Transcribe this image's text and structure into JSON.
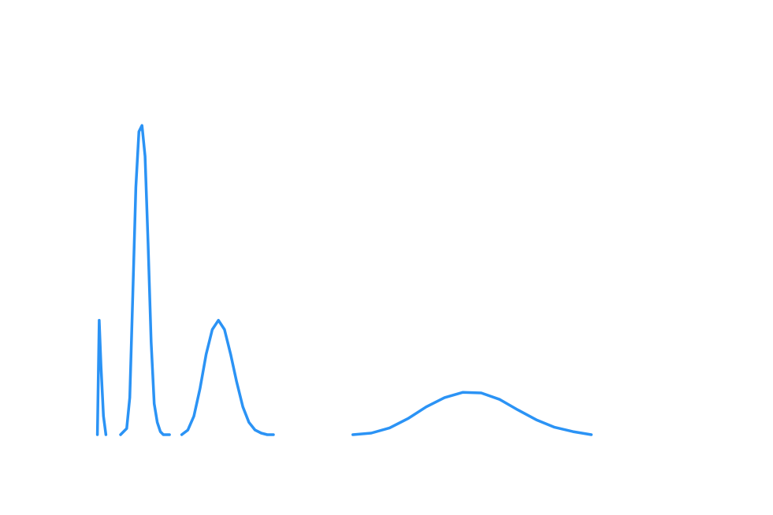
{
  "chart_data": {
    "type": "line",
    "title": "",
    "xlabel": "",
    "ylabel": "",
    "axes_visible": false,
    "grid": false,
    "legend": "none",
    "line_color": "#2b93f5",
    "xlim": [
      0.5,
      10.0
    ],
    "ylim": [
      0.0,
      1.1
    ],
    "series": [
      {
        "x": [
          0.52,
          0.55,
          0.58,
          0.62,
          0.66
        ],
        "y": [
          0.0,
          0.37,
          0.22,
          0.06,
          0.0
        ]
      },
      {
        "x": [
          0.9,
          1.0,
          1.05,
          1.1,
          1.15,
          1.2,
          1.25,
          1.3,
          1.35,
          1.4,
          1.45,
          1.5,
          1.55,
          1.6,
          1.7
        ],
        "y": [
          0.0,
          0.02,
          0.12,
          0.45,
          0.8,
          0.98,
          1.0,
          0.9,
          0.62,
          0.3,
          0.1,
          0.04,
          0.01,
          0.0,
          0.0
        ]
      },
      {
        "x": [
          1.9,
          2.0,
          2.1,
          2.2,
          2.3,
          2.4,
          2.5,
          2.6,
          2.7,
          2.8,
          2.9,
          3.0,
          3.1,
          3.2,
          3.3,
          3.4
        ],
        "y": [
          0.0,
          0.015,
          0.06,
          0.15,
          0.26,
          0.34,
          0.37,
          0.34,
          0.26,
          0.17,
          0.09,
          0.04,
          0.015,
          0.005,
          0.0,
          0.0
        ]
      },
      {
        "x": [
          4.7,
          5.0,
          5.3,
          5.6,
          5.9,
          6.2,
          6.5,
          6.8,
          7.1,
          7.4,
          7.7,
          8.0,
          8.3,
          8.6
        ],
        "y": [
          0.0,
          0.005,
          0.022,
          0.052,
          0.09,
          0.12,
          0.137,
          0.135,
          0.114,
          0.08,
          0.048,
          0.024,
          0.01,
          0.0
        ]
      }
    ]
  }
}
